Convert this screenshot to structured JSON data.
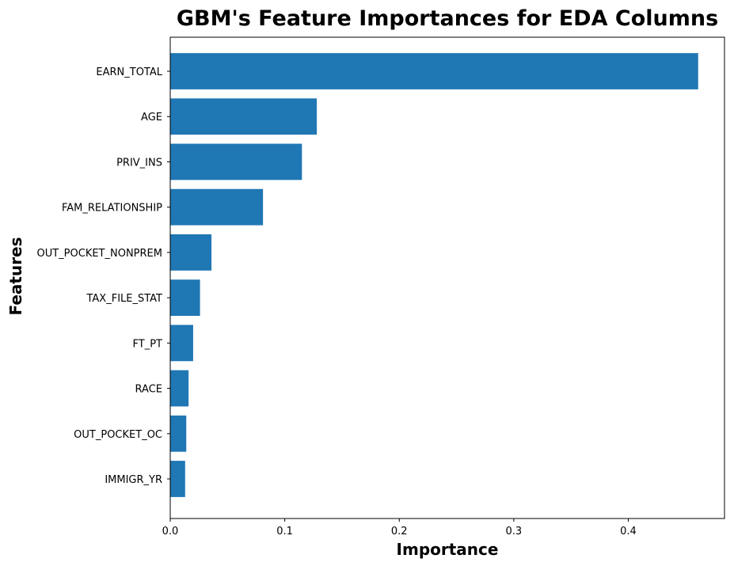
{
  "chart_data": {
    "type": "bar",
    "orientation": "horizontal",
    "title": "GBM's Feature Importances for EDA Columns",
    "xlabel": "Importance",
    "ylabel": "Features",
    "categories": [
      "EARN_TOTAL",
      "AGE",
      "PRIV_INS",
      "FAM_RELATIONSHIP",
      "OUT_POCKET_NONPREM",
      "TAX_FILE_STAT",
      "FT_PT",
      "RACE",
      "OUT_POCKET_OC",
      "IMMIGR_YR"
    ],
    "values": [
      0.461,
      0.128,
      0.115,
      0.081,
      0.036,
      0.026,
      0.02,
      0.016,
      0.014,
      0.013
    ],
    "xlim": [
      0,
      0.484
    ],
    "xticks": [
      0.0,
      0.1,
      0.2,
      0.3,
      0.4
    ],
    "xtick_labels": [
      "0.0",
      "0.1",
      "0.2",
      "0.3",
      "0.4"
    ],
    "bar_color": "#1f77b4",
    "grid": false,
    "legend": "none"
  }
}
